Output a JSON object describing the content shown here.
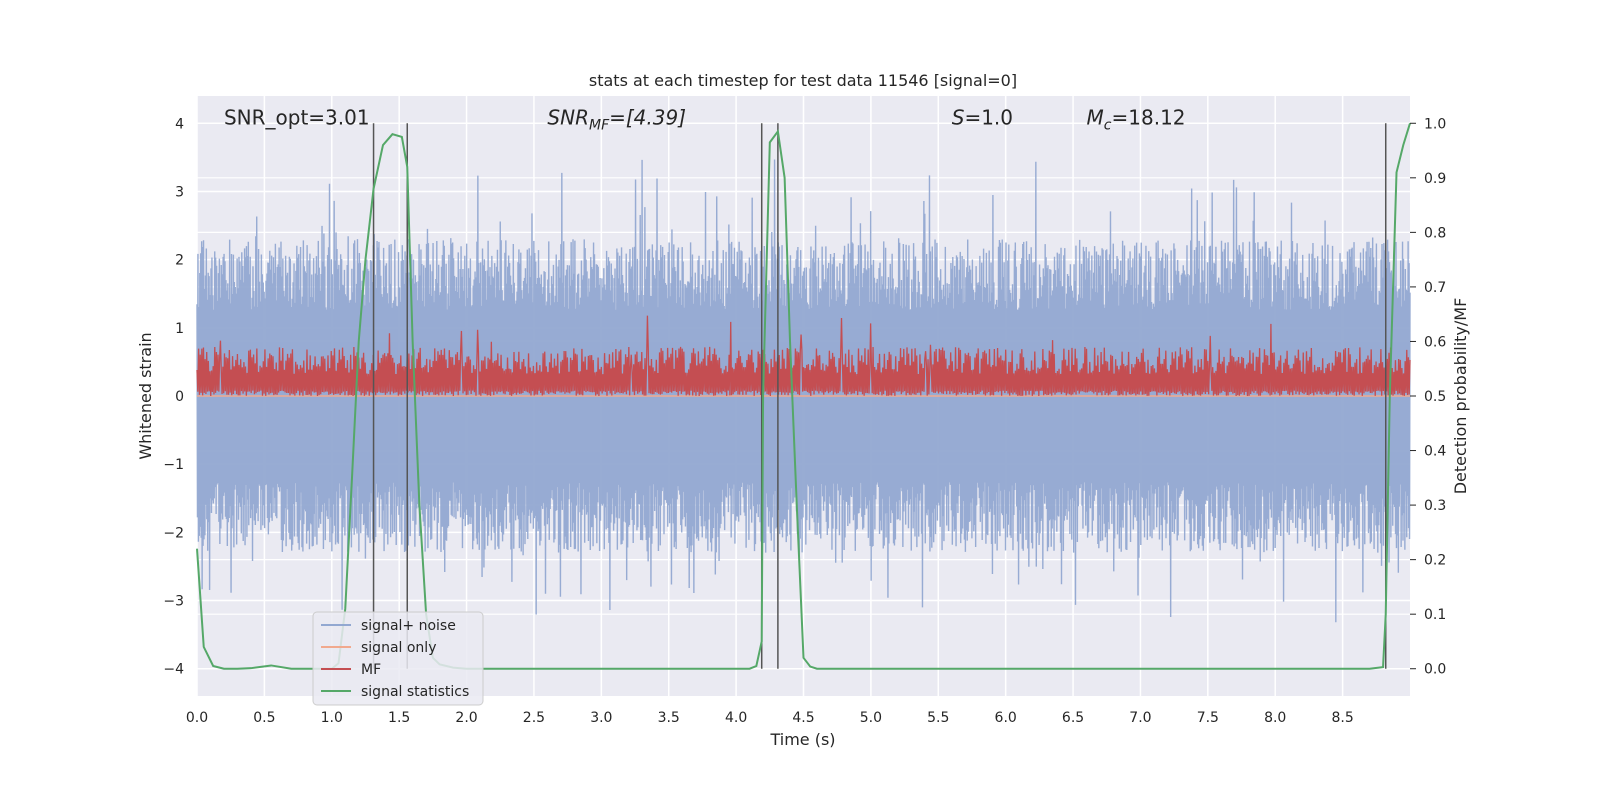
{
  "chart_data": {
    "type": "line",
    "title": "stats at each timestep for test data 11546 [signal=0]",
    "xlabel": "Time (s)",
    "ylabel_left": "Whitened strain",
    "ylabel_right": "Detection probability/MF",
    "xlim": [
      0.0,
      9.0
    ],
    "ylim_left": [
      -4.4,
      4.4
    ],
    "ylim_right": [
      -0.05,
      1.05
    ],
    "x_ticks": [
      0.0,
      0.5,
      1.0,
      1.5,
      2.0,
      2.5,
      3.0,
      3.5,
      4.0,
      4.5,
      5.0,
      5.5,
      6.0,
      6.5,
      7.0,
      7.5,
      8.0,
      8.5
    ],
    "x_tick_labels": [
      "0.0",
      "0.5",
      "1.0",
      "1.5",
      "2.0",
      "2.5",
      "3.0",
      "3.5",
      "4.0",
      "4.5",
      "5.0",
      "5.5",
      "6.0",
      "6.5",
      "7.0",
      "7.5",
      "8.0",
      "8.5"
    ],
    "y_left_ticks": [
      4,
      3,
      2,
      1,
      0,
      -1,
      -2,
      -3,
      -4
    ],
    "y_left_tick_labels": [
      "4",
      "3",
      "2",
      "1",
      "0",
      "−1",
      "−2",
      "−3",
      "−4"
    ],
    "y_right_ticks": [
      1.0,
      0.9,
      0.8,
      0.7,
      0.6,
      0.5,
      0.4,
      0.3,
      0.2,
      0.1,
      0.0
    ],
    "y_right_tick_labels": [
      "1.0",
      "0.9",
      "0.8",
      "0.7",
      "0.6",
      "0.5",
      "0.4",
      "0.3",
      "0.2",
      "0.1",
      "0.0"
    ],
    "annotations": [
      {
        "text": "SNR_opt=3.01",
        "x": 0.2
      },
      {
        "text": "SNR",
        "sub": "MF",
        "suffix": "=[4.39]",
        "x": 2.6,
        "italic": true
      },
      {
        "text": "S",
        "suffix": "=1.0",
        "x": 5.6,
        "italic": true
      },
      {
        "text": "M",
        "sub": "c",
        "suffix": "=18.12",
        "x": 6.6,
        "italic": true
      }
    ],
    "annotation_y": 4.0,
    "vlines": [
      1.31,
      1.56,
      4.19,
      4.31,
      8.82
    ],
    "series": [
      {
        "name": "signal+ noise",
        "color": "#92a8d1",
        "kind": "noise",
        "amplitude_typical": 2.3,
        "amplitude_peak": 3.6
      },
      {
        "name": "signal only",
        "color": "#f1a98e",
        "kind": "flat",
        "value": 0.0
      },
      {
        "name": "MF",
        "color": "#c44e52",
        "kind": "mf",
        "baseline": 0.3,
        "peak": 0.9
      },
      {
        "name": "signal statistics",
        "color": "#55a868",
        "kind": "prob_right_axis",
        "x": [
          0.0,
          0.05,
          0.12,
          0.2,
          0.3,
          0.4,
          0.55,
          0.7,
          0.9,
          1.0,
          1.05,
          1.1,
          1.15,
          1.2,
          1.25,
          1.31,
          1.38,
          1.45,
          1.52,
          1.56,
          1.6,
          1.65,
          1.7,
          1.75,
          1.8,
          1.9,
          2.0,
          2.2,
          2.5,
          3.0,
          3.5,
          4.0,
          4.1,
          4.15,
          4.19,
          4.2,
          4.25,
          4.31,
          4.36,
          4.4,
          4.45,
          4.5,
          4.55,
          4.6,
          5.0,
          6.0,
          7.0,
          8.0,
          8.7,
          8.8,
          8.82,
          8.85,
          8.9,
          8.95,
          9.0
        ],
        "y": [
          0.22,
          0.04,
          0.005,
          0.0,
          0.0,
          0.001,
          0.006,
          0.0,
          0.0,
          0.0,
          0.01,
          0.11,
          0.35,
          0.6,
          0.75,
          0.88,
          0.96,
          0.98,
          0.975,
          0.92,
          0.6,
          0.3,
          0.1,
          0.02,
          0.008,
          0.002,
          0.0,
          0.0,
          0.0,
          0.0,
          0.0,
          0.0,
          0.0,
          0.005,
          0.05,
          0.5,
          0.965,
          0.985,
          0.9,
          0.6,
          0.3,
          0.02,
          0.004,
          0.0,
          0.0,
          0.0,
          0.0,
          0.0,
          0.0,
          0.003,
          0.1,
          0.5,
          0.91,
          0.96,
          1.0
        ]
      }
    ],
    "legend": {
      "placement": "lower-left"
    }
  }
}
